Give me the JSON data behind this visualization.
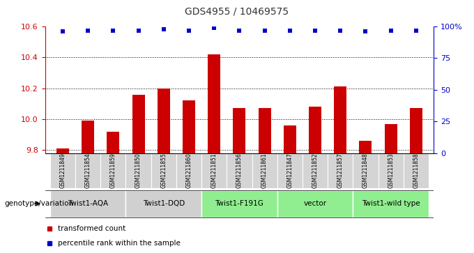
{
  "title": "GDS4955 / 10469575",
  "samples": [
    "GSM1211849",
    "GSM1211854",
    "GSM1211859",
    "GSM1211850",
    "GSM1211855",
    "GSM1211860",
    "GSM1211851",
    "GSM1211856",
    "GSM1211861",
    "GSM1211847",
    "GSM1211852",
    "GSM1211857",
    "GSM1211848",
    "GSM1211853",
    "GSM1211858"
  ],
  "transformed_count": [
    9.81,
    9.99,
    9.92,
    10.16,
    10.2,
    10.12,
    10.42,
    10.07,
    10.07,
    9.96,
    10.08,
    10.21,
    9.86,
    9.97,
    10.07
  ],
  "percentile_rank": [
    96,
    97,
    97,
    97,
    98,
    97,
    99,
    97,
    97,
    97,
    97,
    97,
    96,
    97,
    97
  ],
  "ylim_left": [
    9.78,
    10.6
  ],
  "ylim_right": [
    0,
    100
  ],
  "yticks_left": [
    9.8,
    10.0,
    10.2,
    10.4,
    10.6
  ],
  "yticks_right": [
    0,
    25,
    50,
    75,
    100
  ],
  "ytick_labels_right": [
    "0",
    "25",
    "50",
    "75",
    "100%"
  ],
  "groups": [
    {
      "label": "Twist1-AQA",
      "start": 0,
      "end": 3,
      "color": "#d0d0d0"
    },
    {
      "label": "Twist1-DQD",
      "start": 3,
      "end": 6,
      "color": "#d0d0d0"
    },
    {
      "label": "Twist1-F191G",
      "start": 6,
      "end": 9,
      "color": "#90ee90"
    },
    {
      "label": "vector",
      "start": 9,
      "end": 12,
      "color": "#90ee90"
    },
    {
      "label": "Twist1-wild type",
      "start": 12,
      "end": 15,
      "color": "#90ee90"
    }
  ],
  "bar_color": "#cc0000",
  "dot_color": "#0000cc",
  "bar_width": 0.5,
  "legend_items": [
    {
      "label": "transformed count",
      "color": "#cc0000"
    },
    {
      "label": "percentile rank within the sample",
      "color": "#0000cc"
    }
  ],
  "genotype_label": "genotype/variation",
  "title_color": "#333333",
  "left_axis_color": "#cc0000",
  "right_axis_color": "#0000cc",
  "bg_color": "#ffffff"
}
